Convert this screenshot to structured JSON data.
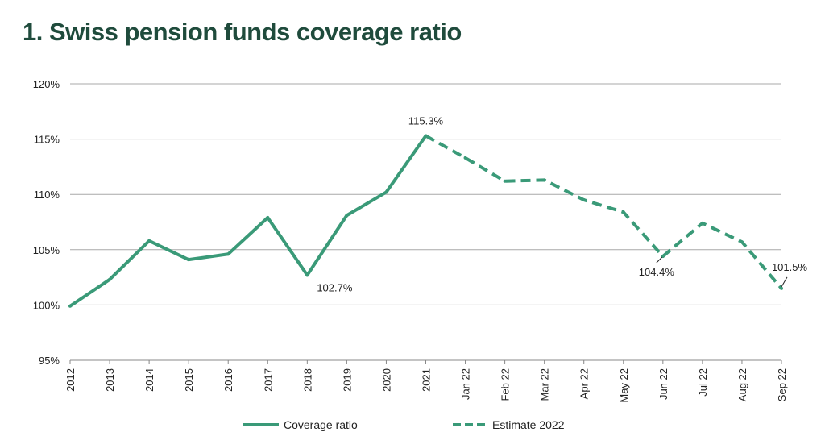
{
  "chart_data": {
    "type": "line",
    "title": "1. Swiss pension funds coverage ratio",
    "xlabel": "",
    "ylabel": "",
    "categories": [
      "2012",
      "2013",
      "2014",
      "2015",
      "2016",
      "2017",
      "2018",
      "2019",
      "2020",
      "2021",
      "Jan 22",
      "Feb 22",
      "Mar 22",
      "Apr 22",
      "May 22",
      "Jun 22",
      "Jul 22",
      "Aug 22",
      "Sep 22"
    ],
    "ylim": [
      95,
      120
    ],
    "yticks": [
      95,
      100,
      105,
      110,
      115,
      120
    ],
    "ytick_labels": [
      "95%",
      "100%",
      "105%",
      "110%",
      "115%",
      "120%"
    ],
    "grid": true,
    "legend": "bottom",
    "series": [
      {
        "name": "Coverage ratio",
        "style": "solid",
        "color": "#3a9a78",
        "values": [
          99.9,
          102.3,
          105.8,
          104.1,
          104.6,
          107.9,
          102.7,
          108.1,
          110.2,
          115.3,
          null,
          null,
          null,
          null,
          null,
          null,
          null,
          null,
          null
        ]
      },
      {
        "name": "Estimate 2022",
        "style": "dashed",
        "color": "#3a9a78",
        "values": [
          null,
          null,
          null,
          null,
          null,
          null,
          null,
          null,
          null,
          115.3,
          113.3,
          111.2,
          111.3,
          109.5,
          108.4,
          104.4,
          107.4,
          105.7,
          101.5
        ]
      }
    ],
    "annotations": [
      {
        "category": "2018",
        "value": 102.7,
        "text": "102.7%"
      },
      {
        "category": "2021",
        "value": 115.3,
        "text": "115.3%"
      },
      {
        "category": "Jun 22",
        "value": 104.4,
        "text": "104.4%"
      },
      {
        "category": "Sep 22",
        "value": 101.5,
        "text": "101.5%"
      }
    ]
  }
}
